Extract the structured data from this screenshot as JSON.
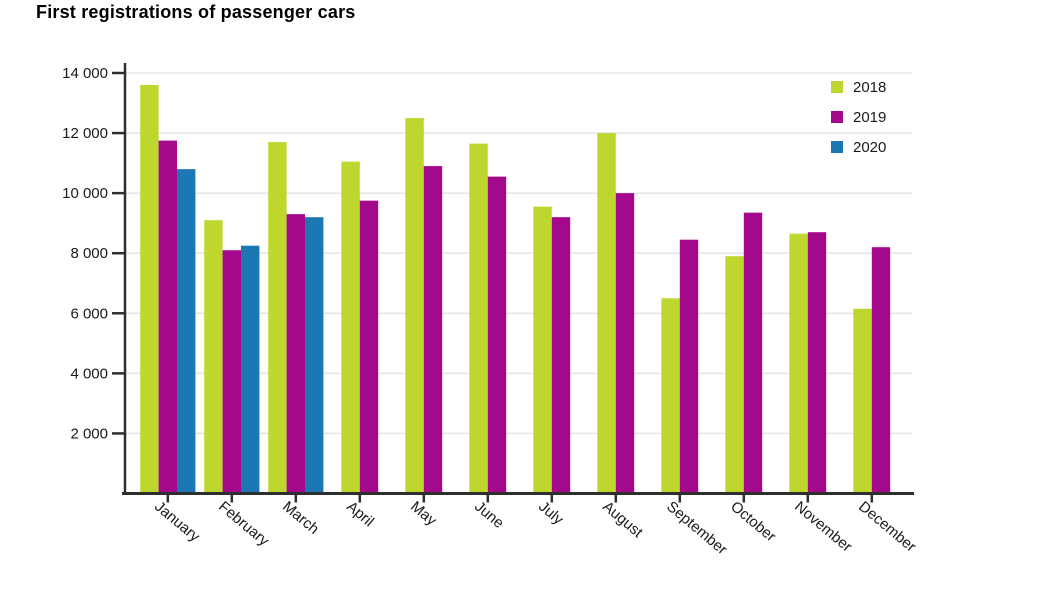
{
  "chart_data": {
    "type": "bar",
    "title": "First registrations of passenger cars",
    "xlabel": "",
    "ylabel": "",
    "categories": [
      "January",
      "February",
      "March",
      "April",
      "May",
      "June",
      "July",
      "August",
      "September",
      "October",
      "November",
      "December"
    ],
    "series": [
      {
        "name": "2018",
        "color": "#bed62e",
        "values": [
          13600,
          9100,
          11700,
          11050,
          12500,
          11650,
          9550,
          12000,
          6500,
          7900,
          8650,
          6150
        ]
      },
      {
        "name": "2019",
        "color": "#a5098b",
        "values": [
          11750,
          8100,
          9300,
          9750,
          10900,
          10550,
          9200,
          10000,
          8450,
          9350,
          8700,
          8200
        ]
      },
      {
        "name": "2020",
        "color": "#1b78b4",
        "values": [
          10800,
          8250,
          9200,
          null,
          null,
          null,
          null,
          null,
          null,
          null,
          null,
          null
        ]
      }
    ],
    "ylim": [
      0,
      14000
    ],
    "ytick_step": 2000,
    "ytick_labels": [
      "2 000",
      "4 000",
      "6 000",
      "8 000",
      "10 000",
      "12 000",
      "14 000"
    ],
    "grid": "horizontal",
    "legend_position": "top-right"
  },
  "colors": {
    "axis": "#2e2e2e",
    "grid": "#e6e6e6",
    "text": "#1a1a1a",
    "background": "#ffffff"
  }
}
